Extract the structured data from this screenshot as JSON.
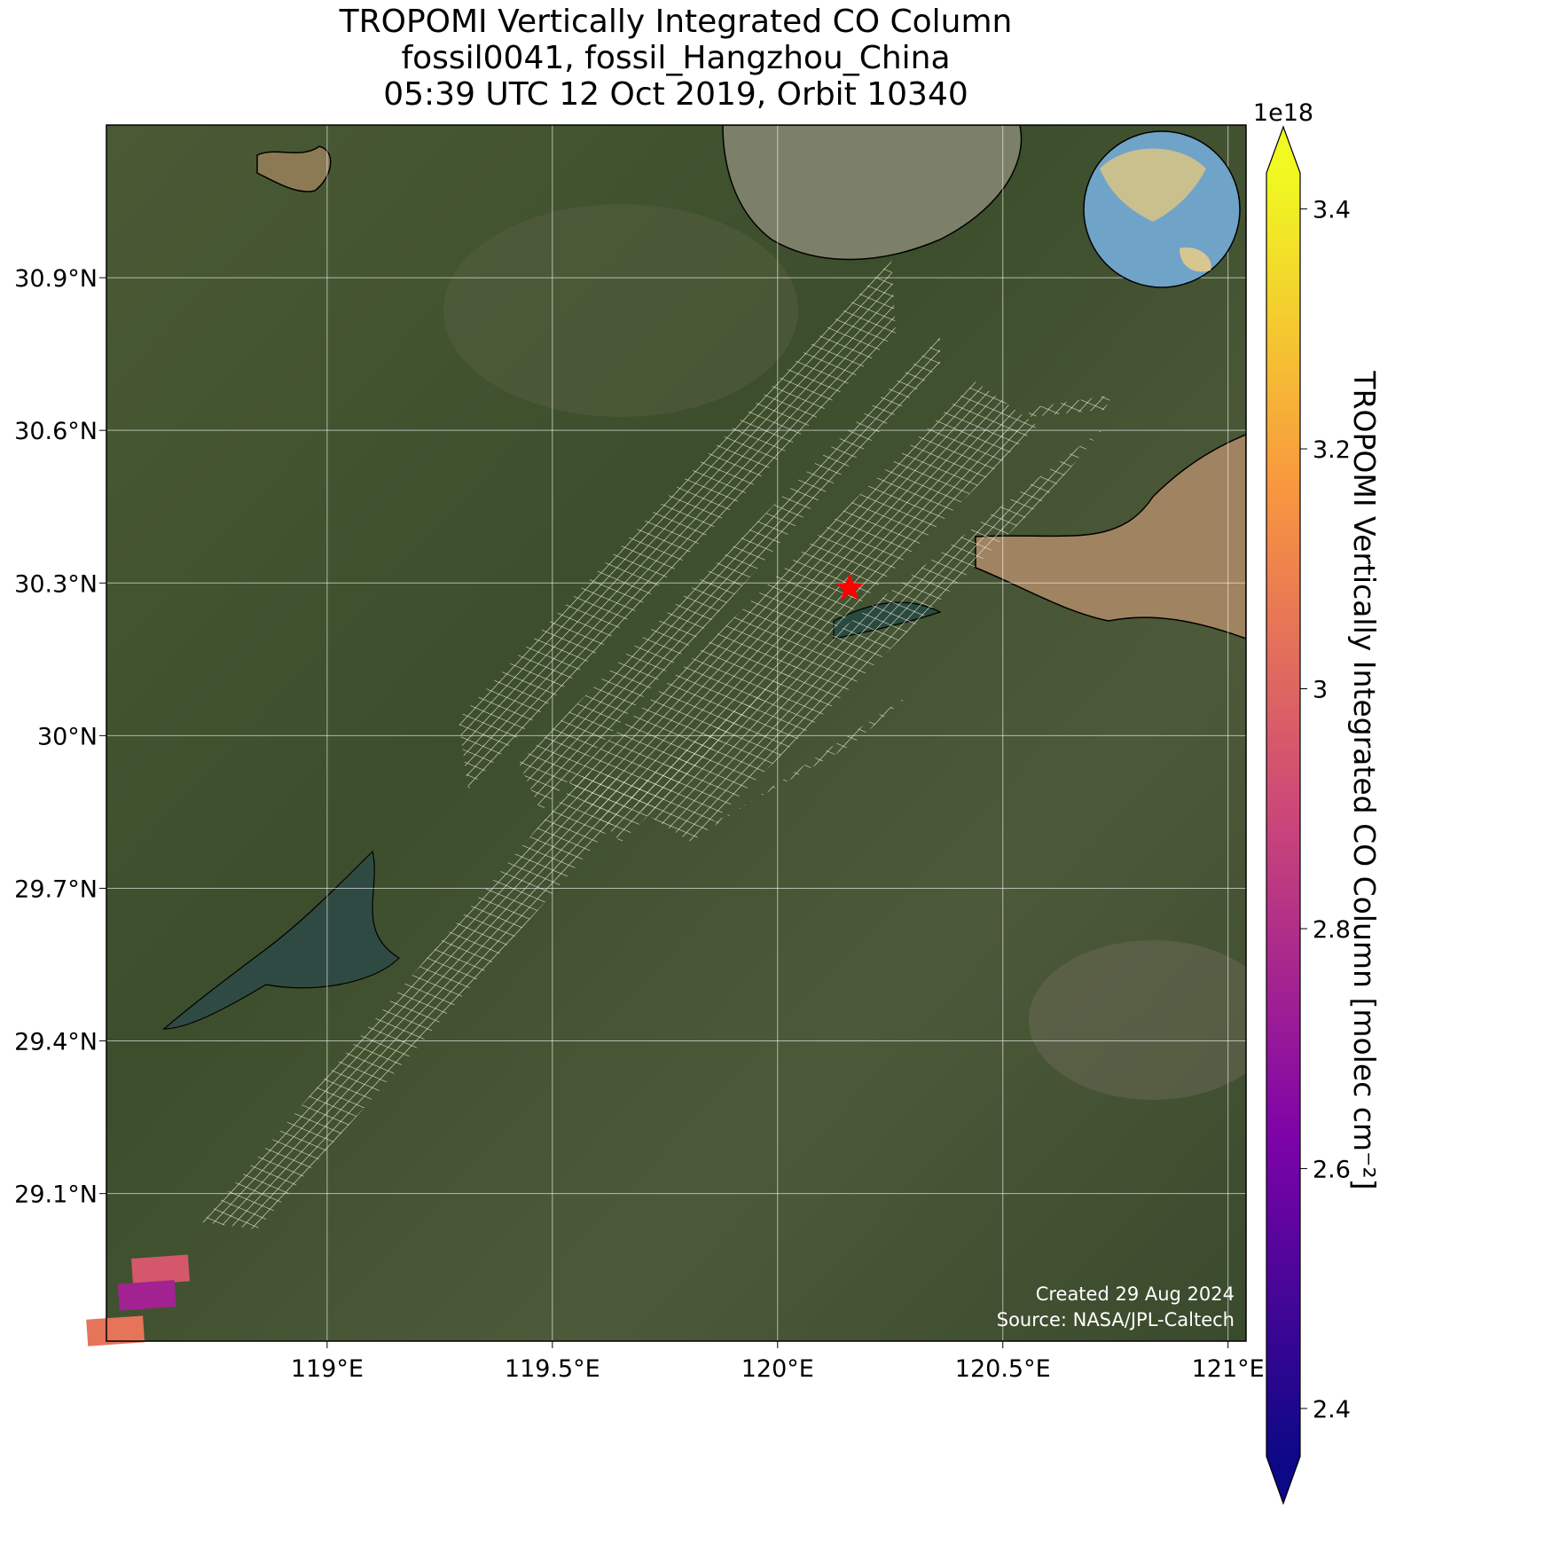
{
  "chart_data": {
    "type": "map",
    "title": [
      "TROPOMI Vertically Integrated CO Column",
      "fossil0041, fossil_Hangzhou_China",
      "05:39 UTC 12 Oct 2019, Orbit 10340"
    ],
    "xlim": [
      118.51,
      121.04
    ],
    "ylim": [
      28.81,
      31.2
    ],
    "xticks": [
      {
        "value": 119,
        "label": "119°E"
      },
      {
        "value": 119.5,
        "label": "119.5°E"
      },
      {
        "value": 120,
        "label": "120°E"
      },
      {
        "value": 120.5,
        "label": "120.5°E"
      },
      {
        "value": 121,
        "label": "121°E"
      }
    ],
    "yticks": [
      {
        "value": 29.1,
        "label": "29.1°N"
      },
      {
        "value": 29.4,
        "label": "29.4°N"
      },
      {
        "value": 29.7,
        "label": "29.7°N"
      },
      {
        "value": 30,
        "label": "30°N"
      },
      {
        "value": 30.3,
        "label": "30.3°N"
      },
      {
        "value": 30.6,
        "label": "30.6°N"
      },
      {
        "value": 30.9,
        "label": "30.9°N"
      }
    ],
    "grid": true,
    "site": {
      "lon": 120.16,
      "lat": 30.29,
      "color": "#ff0000"
    },
    "pixels": {
      "lon": [
        118.63,
        118.6,
        118.53
      ],
      "lat": [
        28.95,
        28.9,
        28.83
      ],
      "values": [
        2.95,
        2.75,
        3.05
      ]
    },
    "colorbar": {
      "label": "TROPOMI Vertically Integrated CO Column [molec cm⁻²]",
      "offset": "1e18",
      "clim": [
        2.36,
        3.43
      ],
      "ticks": [
        2.4,
        2.6,
        2.8,
        3.0,
        3.2,
        3.4
      ],
      "colormap": "plasma"
    },
    "annotations": [
      "Created 29 Aug 2024",
      "Source: NASA/JPL-Caltech"
    ]
  }
}
